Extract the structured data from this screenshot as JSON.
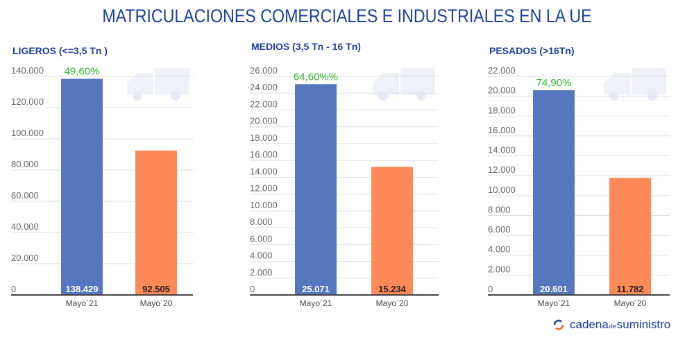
{
  "title": "MATRICULACIONES COMERCIALES E INDUSTRIALES EN LA UE",
  "logo": {
    "part1": "cadena",
    "part2": "de",
    "part3": "suministro"
  },
  "colors": {
    "series_2021": "#5677c0",
    "series_2020": "#ff8a57",
    "pct": "#2db52d",
    "title": "#1a3e9c"
  },
  "chart_data": [
    {
      "type": "bar",
      "title": "LIGEROS (<=3,5 Tn )",
      "categories": [
        "Mayo´21",
        "Mayo´20"
      ],
      "values": [
        138429,
        92505
      ],
      "value_labels": [
        "138.429",
        "92.505"
      ],
      "annotation": "49,60%",
      "ylim": [
        0,
        140000
      ],
      "yticks": [
        "0",
        "20.000",
        "40.000",
        "60.000",
        "80.000",
        "100.000",
        "120.000",
        "140.000"
      ],
      "icon": "van-icon",
      "grid": true
    },
    {
      "type": "bar",
      "title": "MEDIOS (3,5 Tn - 16 Tn)",
      "categories": [
        "Mayo´21",
        "Mayo´20"
      ],
      "values": [
        25071,
        15234
      ],
      "value_labels": [
        "25.071",
        "15.234"
      ],
      "annotation": "64,60%%",
      "ylim": [
        0,
        26000
      ],
      "yticks": [
        "0",
        "2.000",
        "4.000",
        "6.000",
        "8.000",
        "10.000",
        "12.000",
        "14.000",
        "16.000",
        "18.000",
        "20.000",
        "22.000",
        "24.000",
        "26.000"
      ],
      "icon": "truck-icon",
      "grid": true
    },
    {
      "type": "bar",
      "title": "PESADOS (>16Tn)",
      "categories": [
        "Mayo´21",
        "Mayo´20"
      ],
      "values": [
        20601,
        11782
      ],
      "value_labels": [
        "20.601",
        "11.782"
      ],
      "annotation": "74,90%",
      "ylim": [
        0,
        22000
      ],
      "yticks": [
        "0",
        "2.000",
        "4.000",
        "6.000",
        "8.000",
        "10.000",
        "12.000",
        "14.000",
        "16.000",
        "18.000",
        "20.000",
        "22.000"
      ],
      "icon": "semi-truck-icon",
      "grid": true
    }
  ]
}
